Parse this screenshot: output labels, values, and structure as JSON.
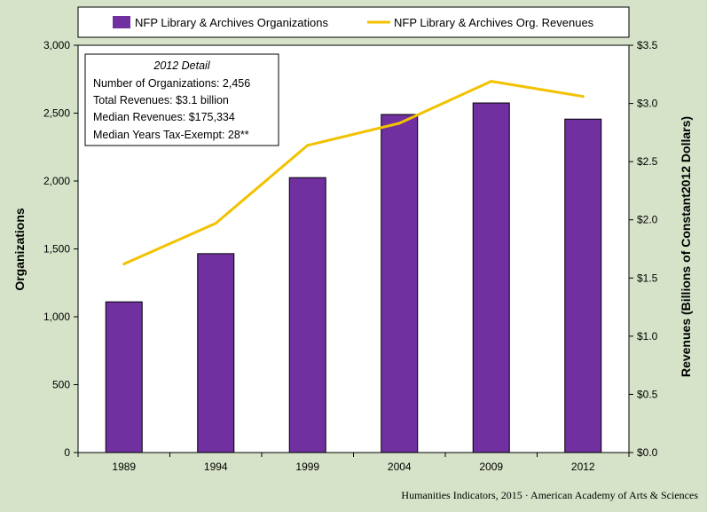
{
  "chart_data": {
    "type": "bar",
    "categories": [
      "1989",
      "1994",
      "1999",
      "2004",
      "2009",
      "2012"
    ],
    "series": [
      {
        "name": "NFP Library & Archives Organizations",
        "kind": "bar",
        "axis": "left",
        "color": "#7030a0",
        "values": [
          1110,
          1465,
          2025,
          2490,
          2575,
          2456
        ]
      },
      {
        "name": "NFP Library & Archives Org. Revenues",
        "kind": "line",
        "axis": "right",
        "color": "#f2c200",
        "values": [
          1.62,
          1.97,
          2.64,
          2.83,
          3.19,
          3.06
        ]
      }
    ],
    "ylabel": "Organizations",
    "y2label": "Revenues (Billions of Constant2012 Dollars)",
    "ylim": [
      0,
      3000
    ],
    "y2lim": [
      0,
      3.5
    ],
    "yticks": [
      "0",
      "500",
      "1,000",
      "1,500",
      "2,000",
      "2,500",
      "3,000"
    ],
    "y2ticks": [
      "$0.0",
      "$0.5",
      "$1.0",
      "$1.5",
      "$2.0",
      "$2.5",
      "$3.0",
      "$3.5"
    ],
    "legend_position": "top",
    "grid": false
  },
  "detail_box": {
    "title": "2012 Detail",
    "lines": [
      "Number of Organizations:  2,456",
      "Total Revenues:  $3.1 billion",
      "Median Revenues:  $175,334",
      "Median Years Tax-Exempt:  28**"
    ]
  },
  "credit": "Humanities Indicators, 2015 · American Academy of Arts & Sciences",
  "colors": {
    "background": "#d6e3c8",
    "plot_area": "#ffffff",
    "bar": "#7030a0",
    "line": "#f2c200"
  }
}
